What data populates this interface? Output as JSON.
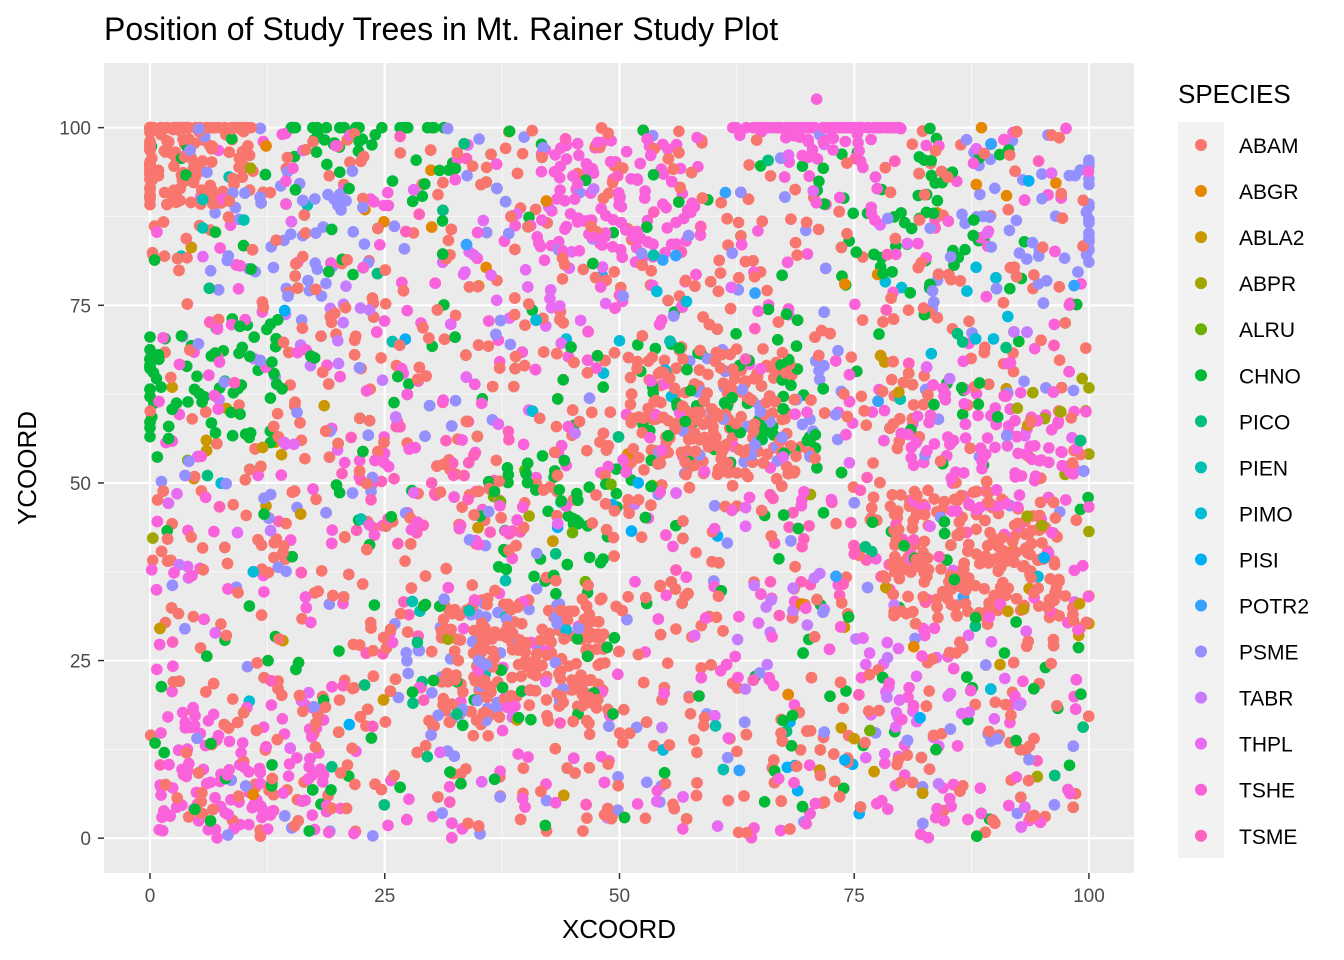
{
  "chart_data": {
    "type": "scatter",
    "title": "Position of Study Trees in Mt. Rainer Study Plot",
    "xlabel": "XCOORD",
    "ylabel": "YCOORD",
    "xlim": [
      -4.9,
      104.8
    ],
    "ylim": [
      -4.9,
      109.1
    ],
    "x_ticks": [
      "0",
      "25",
      "50",
      "75",
      "100"
    ],
    "y_ticks": [
      "0",
      "25",
      "50",
      "75",
      "100"
    ],
    "grid": true,
    "legend_position": "right",
    "legend_title": "SPECIES",
    "series": [
      {
        "name": "ABAM",
        "color": "#F8766D",
        "approx_share": 0.45,
        "points": [
          [
            2,
            98
          ],
          [
            60,
            60
          ],
          [
            40,
            25
          ],
          [
            88,
            40
          ]
        ]
      },
      {
        "name": "ABGR",
        "color": "#E58700",
        "approx_share": 0.004,
        "points": [
          [
            30,
            86
          ],
          [
            88,
            92
          ],
          [
            74,
            78
          ]
        ]
      },
      {
        "name": "ABLA2",
        "color": "#C99800",
        "approx_share": 0.01,
        "points": [
          [
            6,
            56
          ],
          [
            12,
            55
          ],
          [
            75,
            14
          ],
          [
            99,
            33
          ]
        ]
      },
      {
        "name": "ABPR",
        "color": "#A3A500",
        "approx_share": 0.004,
        "points": [
          [
            97,
            60
          ],
          [
            95,
            44
          ]
        ]
      },
      {
        "name": "ALRU",
        "color": "#6BB100",
        "approx_share": 0.002,
        "points": [
          [
            45,
            43
          ]
        ]
      },
      {
        "name": "CHNO",
        "color": "#00BA38",
        "approx_share": 0.12,
        "points": [
          [
            24,
            99
          ],
          [
            5,
            65
          ],
          [
            45,
            45
          ],
          [
            80,
            88
          ],
          [
            62,
            62
          ]
        ]
      },
      {
        "name": "PICO",
        "color": "#00BF7D",
        "approx_share": 0.006,
        "points": [
          [
            28,
            19
          ],
          [
            86,
            71
          ]
        ]
      },
      {
        "name": "PIEN",
        "color": "#00C0AF",
        "approx_share": 0.006,
        "points": [
          [
            10,
            87
          ],
          [
            34,
            32
          ]
        ]
      },
      {
        "name": "PIMO",
        "color": "#00BCD8",
        "approx_share": 0.006,
        "points": [
          [
            87,
            77
          ],
          [
            50,
            70
          ]
        ]
      },
      {
        "name": "PISI",
        "color": "#00B0F6",
        "approx_share": 0.004,
        "points": [
          [
            74,
            11
          ],
          [
            52,
            50
          ]
        ]
      },
      {
        "name": "POTR2",
        "color": "#35A2FF",
        "approx_share": 0.003,
        "points": [
          [
            56,
            82
          ]
        ]
      },
      {
        "name": "PSME",
        "color": "#9590FF",
        "approx_share": 0.09,
        "points": [
          [
            15,
            85
          ],
          [
            35,
            25
          ],
          [
            65,
            60
          ],
          [
            95,
            90
          ]
        ]
      },
      {
        "name": "TABR",
        "color": "#C77CFF",
        "approx_share": 0.01,
        "points": [
          [
            20,
            70
          ],
          [
            70,
            30
          ]
        ]
      },
      {
        "name": "THPL",
        "color": "#E76BF3",
        "approx_share": 0.03,
        "points": [
          [
            40,
            80
          ],
          [
            85,
            20
          ]
        ]
      },
      {
        "name": "TSHE",
        "color": "#FA62DB",
        "approx_share": 0.22,
        "points": [
          [
            71,
            104
          ],
          [
            10,
            10
          ],
          [
            50,
            90
          ],
          [
            90,
            55
          ]
        ]
      },
      {
        "name": "TSME",
        "color": "#FF62BC",
        "approx_share": 0.03,
        "points": [
          [
            30,
            50
          ],
          [
            75,
            40
          ]
        ]
      }
    ],
    "approx_total_points": 5300,
    "notes_extent": "points fill x 0–100, y 0–100 (one TSHE outlier near x 71, y 104)"
  }
}
